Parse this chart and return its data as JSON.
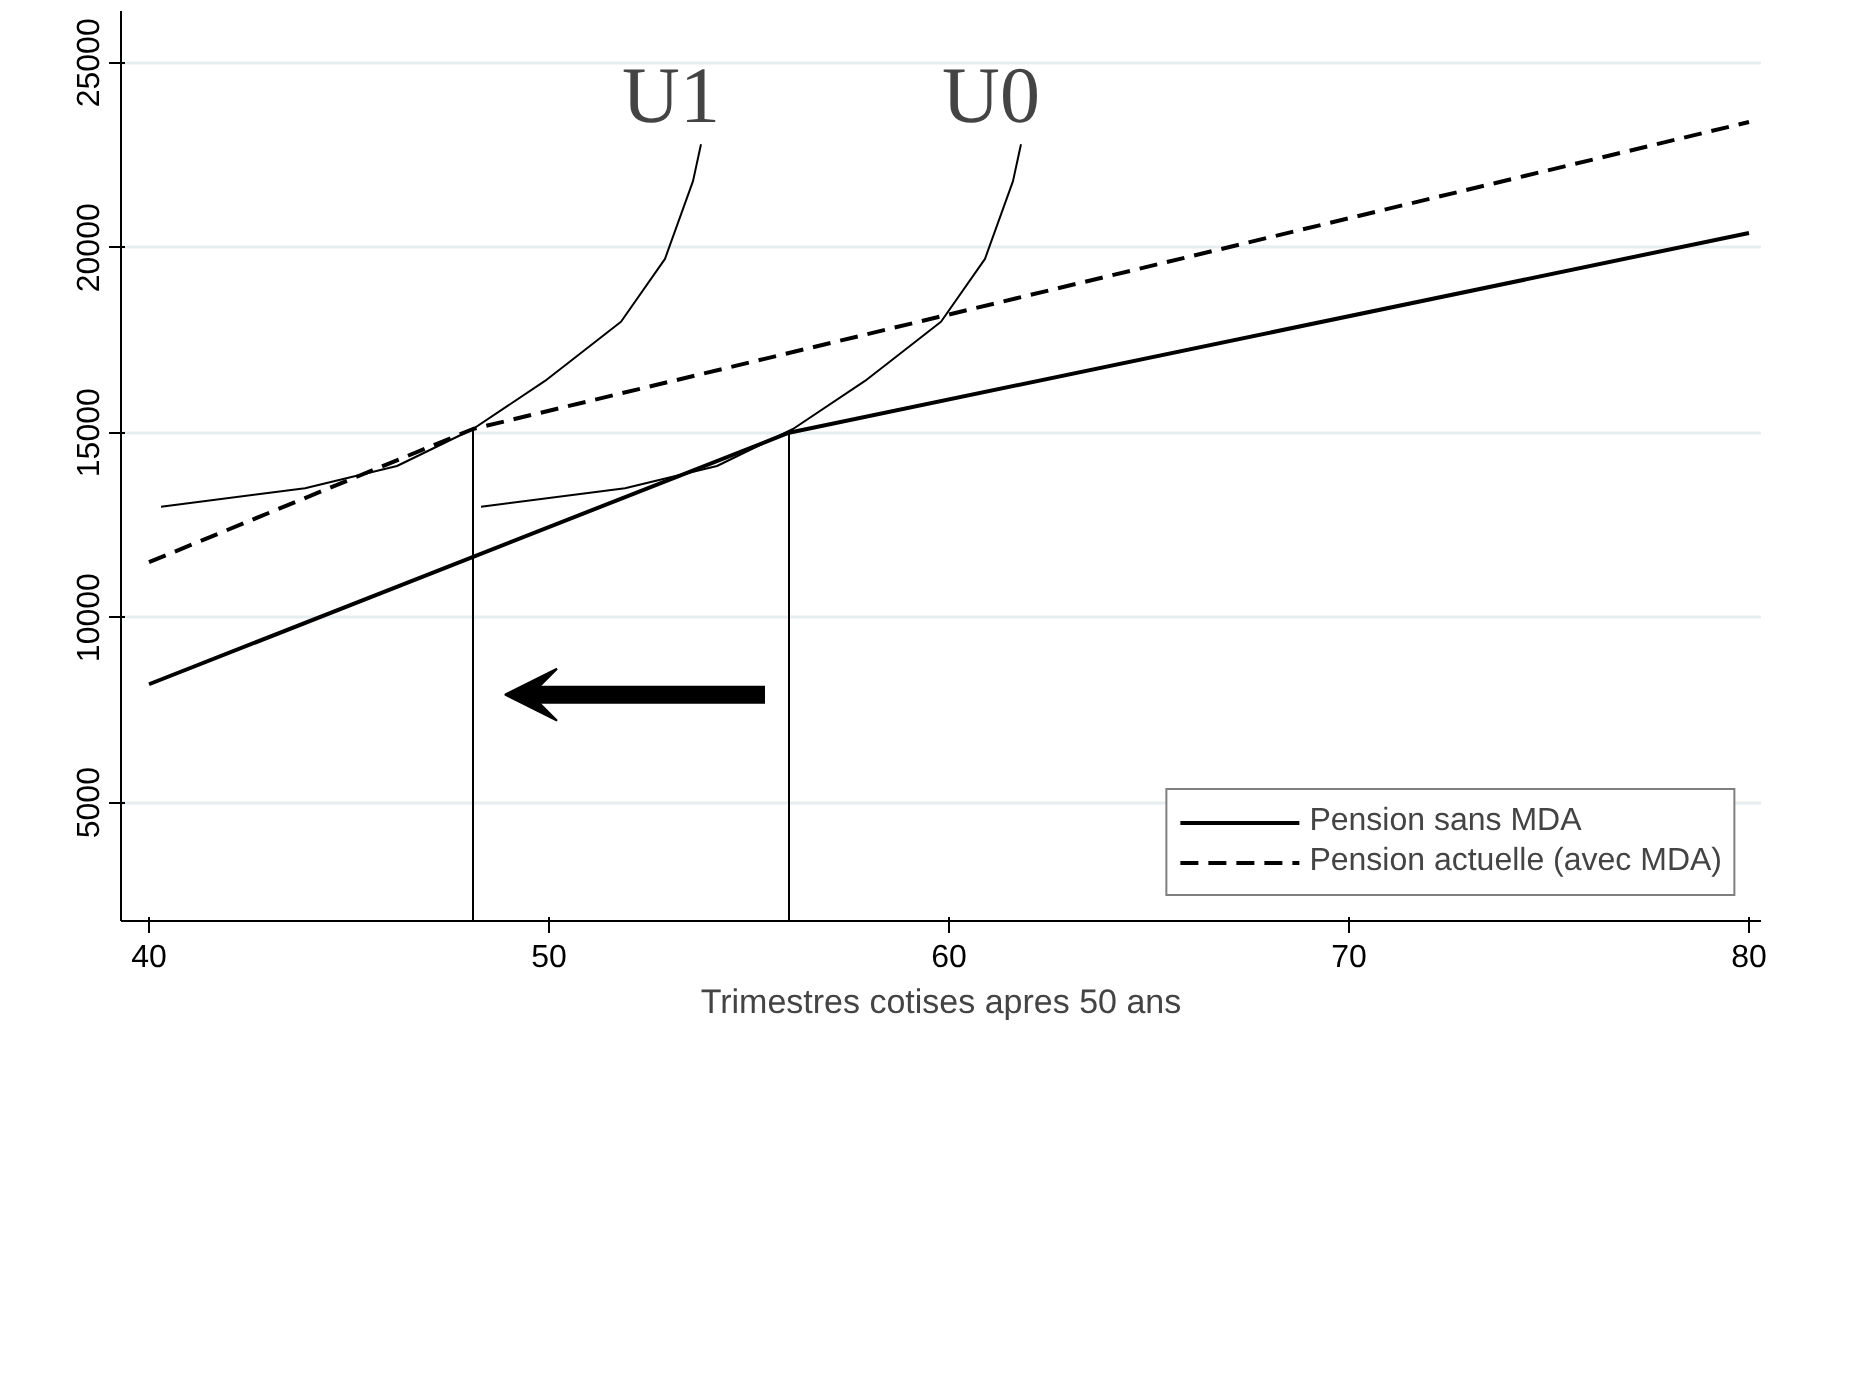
{
  "chart_data": {
    "type": "line",
    "xlabel": "Trimestres cotises apres 50 ans",
    "xlim": [
      39.3,
      80.3
    ],
    "ylim": [
      1800,
      26400
    ],
    "xticks": [
      40,
      50,
      60,
      70,
      80
    ],
    "yticks": [
      5000,
      10000,
      15000,
      20000,
      25000
    ],
    "grid": "y",
    "legend": "bottom right",
    "marker": "none",
    "series": [
      {
        "name": "Pension sans MDA",
        "color": "#000000",
        "line_style": "solid",
        "x": [
          40,
          56,
          80
        ],
        "values": [
          8200,
          15000,
          20400
        ]
      },
      {
        "name": "Pension actuelle (avec MDA)",
        "color": "#000000",
        "line_style": "dashed",
        "x": [
          40,
          48.1,
          80
        ],
        "values": [
          11500,
          15100,
          23400
        ]
      },
      {
        "color": "#000000",
        "line_style": "solid",
        "x": [
          48.1,
          48.1
        ],
        "values": [
          1800,
          15100
        ]
      },
      {
        "color": "#000000",
        "line_style": "solid",
        "x": [
          56,
          56
        ],
        "values": [
          1800,
          15000
        ]
      },
      {
        "color": "#000000",
        "line_style": "solid",
        "x": [
          40.3,
          43.9,
          46.2,
          48.1,
          49.9,
          51.8,
          52.9,
          53.6,
          53.8
        ],
        "values": [
          13000,
          13500,
          14100,
          15100,
          16400,
          18000,
          19700,
          21800,
          22800
        ]
      },
      {
        "color": "#000000",
        "line_style": "solid",
        "x": [
          48.3,
          51.9,
          54.2,
          56.1,
          57.9,
          59.8,
          60.9,
          61.6,
          61.8
        ],
        "values": [
          13000,
          13500,
          14100,
          15100,
          16400,
          18000,
          19700,
          21800,
          22800
        ]
      }
    ],
    "annotations": [
      {
        "text": "U1",
        "x": 53.8,
        "y": 22800
      },
      {
        "text": "U0",
        "x": 61.8,
        "y": 22800
      }
    ]
  }
}
